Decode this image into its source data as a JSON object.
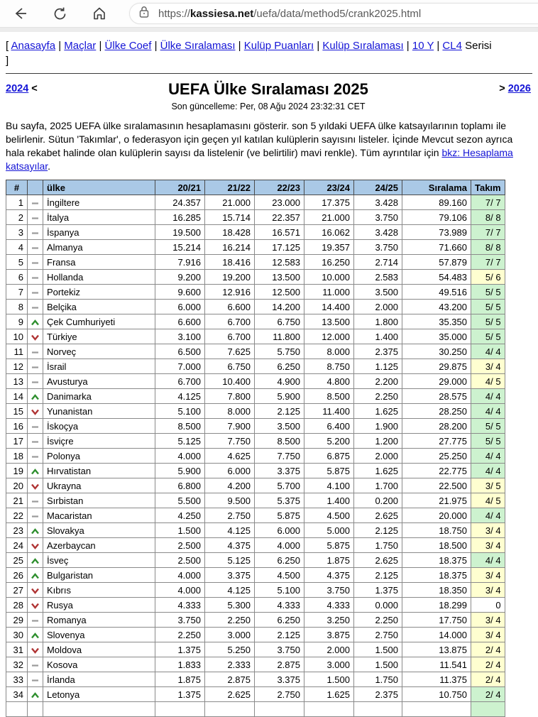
{
  "browser": {
    "url_prefix": "https://",
    "url_domain": "kassiesa.net",
    "url_path": "/uefa/data/method5/crank2025.html"
  },
  "nav": {
    "bracket_open": "[",
    "links": [
      "Anasayfa",
      "Maçlar",
      "Ülke Coef",
      "Ülke Sıralaması",
      "Kulüp Puanları",
      "Kulüp Sıralaması",
      "10 Y",
      "CL4"
    ],
    "separator": "|",
    "suffix": "Serisi",
    "bracket_close": "]"
  },
  "header": {
    "prev_year": "2024",
    "prev_sep": " <",
    "title": "UEFA Ülke Sıralaması 2025",
    "subtitle": "Son güncelleme: Per, 08 Ağu 2024 23:32:31 CET",
    "next_sep": "> ",
    "next_year": "2026"
  },
  "intro": {
    "before_link": "Bu sayfa, 2025 UEFA ülke sıralamasının hesaplamasını gösterir. son 5 yıldaki UEFA ülke katsayılarının toplamı ile belirlenir. Sütun 'Takımlar', o federasyon için geçen yıl katılan kulüplerin sayısını listeler. İçinde Mevcut sezon ayrıca hala rekabet halinde olan kulüplerin sayısı da listelenir (ve belirtilir) mavi renkle). Tüm ayrıntılar için ",
    "link_text": "bkz: Hesaplama katsayılar",
    "after_link": "."
  },
  "table": {
    "headers": [
      "#",
      "",
      "ülke",
      "20/21",
      "21/22",
      "22/23",
      "23/24",
      "24/25",
      "Sıralama",
      "Takım"
    ],
    "rows": [
      {
        "rank": "1",
        "move": "same",
        "country": "İngiltere",
        "values": [
          "24.357",
          "21.000",
          "23.000",
          "17.375",
          "3.428"
        ],
        "total": "89.160",
        "teams": "7/ 7",
        "teams_bg": "green"
      },
      {
        "rank": "2",
        "move": "same",
        "country": "İtalya",
        "values": [
          "16.285",
          "15.714",
          "22.357",
          "21.000",
          "3.750"
        ],
        "total": "79.106",
        "teams": "8/ 8",
        "teams_bg": "green"
      },
      {
        "rank": "3",
        "move": "same",
        "country": "İspanya",
        "values": [
          "19.500",
          "18.428",
          "16.571",
          "16.062",
          "3.428"
        ],
        "total": "73.989",
        "teams": "7/ 7",
        "teams_bg": "green"
      },
      {
        "rank": "4",
        "move": "same",
        "country": "Almanya",
        "values": [
          "15.214",
          "16.214",
          "17.125",
          "19.357",
          "3.750"
        ],
        "total": "71.660",
        "teams": "8/ 8",
        "teams_bg": "green"
      },
      {
        "rank": "5",
        "move": "same",
        "country": "Fransa",
        "values": [
          "7.916",
          "18.416",
          "12.583",
          "16.250",
          "2.714"
        ],
        "total": "57.879",
        "teams": "7/ 7",
        "teams_bg": "green"
      },
      {
        "rank": "6",
        "move": "same",
        "country": "Hollanda",
        "values": [
          "9.200",
          "19.200",
          "13.500",
          "10.000",
          "2.583"
        ],
        "total": "54.483",
        "teams": "5/ 6",
        "teams_bg": "yellow"
      },
      {
        "rank": "7",
        "move": "same",
        "country": "Portekiz",
        "values": [
          "9.600",
          "12.916",
          "12.500",
          "11.000",
          "3.500"
        ],
        "total": "49.516",
        "teams": "5/ 5",
        "teams_bg": "green"
      },
      {
        "rank": "8",
        "move": "same",
        "country": "Belçika",
        "values": [
          "6.000",
          "6.600",
          "14.200",
          "14.400",
          "2.000"
        ],
        "total": "43.200",
        "teams": "5/ 5",
        "teams_bg": "green"
      },
      {
        "rank": "9",
        "move": "up",
        "country": "Çek Cumhuriyeti",
        "values": [
          "6.600",
          "6.700",
          "6.750",
          "13.500",
          "1.800"
        ],
        "total": "35.350",
        "teams": "5/ 5",
        "teams_bg": "green"
      },
      {
        "rank": "10",
        "move": "down",
        "country": "Türkiye",
        "values": [
          "3.100",
          "6.700",
          "11.800",
          "12.000",
          "1.400"
        ],
        "total": "35.000",
        "teams": "5/ 5",
        "teams_bg": "green"
      },
      {
        "rank": "11",
        "move": "same",
        "country": "Norveç",
        "values": [
          "6.500",
          "7.625",
          "5.750",
          "8.000",
          "2.375"
        ],
        "total": "30.250",
        "teams": "4/ 4",
        "teams_bg": "green"
      },
      {
        "rank": "12",
        "move": "same",
        "country": "İsrail",
        "values": [
          "7.000",
          "6.750",
          "6.250",
          "8.750",
          "1.125"
        ],
        "total": "29.875",
        "teams": "3/ 4",
        "teams_bg": "yellow"
      },
      {
        "rank": "13",
        "move": "same",
        "country": "Avusturya",
        "values": [
          "6.700",
          "10.400",
          "4.900",
          "4.800",
          "2.200"
        ],
        "total": "29.000",
        "teams": "4/ 5",
        "teams_bg": "yellow"
      },
      {
        "rank": "14",
        "move": "up",
        "country": "Danimarka",
        "values": [
          "4.125",
          "7.800",
          "5.900",
          "8.500",
          "2.250"
        ],
        "total": "28.575",
        "teams": "4/ 4",
        "teams_bg": "green"
      },
      {
        "rank": "15",
        "move": "down",
        "country": "Yunanistan",
        "values": [
          "5.100",
          "8.000",
          "2.125",
          "11.400",
          "1.625"
        ],
        "total": "28.250",
        "teams": "4/ 4",
        "teams_bg": "green"
      },
      {
        "rank": "16",
        "move": "same",
        "country": "İskoçya",
        "values": [
          "8.500",
          "7.900",
          "3.500",
          "6.400",
          "1.900"
        ],
        "total": "28.200",
        "teams": "5/ 5",
        "teams_bg": "green"
      },
      {
        "rank": "17",
        "move": "same",
        "country": "İsviçre",
        "values": [
          "5.125",
          "7.750",
          "8.500",
          "5.200",
          "1.200"
        ],
        "total": "27.775",
        "teams": "5/ 5",
        "teams_bg": "green"
      },
      {
        "rank": "18",
        "move": "same",
        "country": "Polonya",
        "values": [
          "4.000",
          "4.625",
          "7.750",
          "6.875",
          "2.000"
        ],
        "total": "25.250",
        "teams": "4/ 4",
        "teams_bg": "green"
      },
      {
        "rank": "19",
        "move": "up",
        "country": "Hırvatistan",
        "values": [
          "5.900",
          "6.000",
          "3.375",
          "5.875",
          "1.625"
        ],
        "total": "22.775",
        "teams": "4/ 4",
        "teams_bg": "green"
      },
      {
        "rank": "20",
        "move": "down",
        "country": "Ukrayna",
        "values": [
          "6.800",
          "4.200",
          "5.700",
          "4.100",
          "1.700"
        ],
        "total": "22.500",
        "teams": "3/ 5",
        "teams_bg": "yellow"
      },
      {
        "rank": "21",
        "move": "same",
        "country": "Sırbistan",
        "values": [
          "5.500",
          "9.500",
          "5.375",
          "1.400",
          "0.200"
        ],
        "total": "21.975",
        "teams": "4/ 5",
        "teams_bg": "yellow"
      },
      {
        "rank": "22",
        "move": "same",
        "country": "Macaristan",
        "values": [
          "4.250",
          "2.750",
          "5.875",
          "4.500",
          "2.625"
        ],
        "total": "20.000",
        "teams": "4/ 4",
        "teams_bg": "green"
      },
      {
        "rank": "23",
        "move": "up",
        "country": "Slovakya",
        "values": [
          "1.500",
          "4.125",
          "6.000",
          "5.000",
          "2.125"
        ],
        "total": "18.750",
        "teams": "3/ 4",
        "teams_bg": "yellow"
      },
      {
        "rank": "24",
        "move": "down",
        "country": "Azerbaycan",
        "values": [
          "2.500",
          "4.375",
          "4.000",
          "5.875",
          "1.750"
        ],
        "total": "18.500",
        "teams": "3/ 4",
        "teams_bg": "yellow"
      },
      {
        "rank": "25",
        "move": "up",
        "country": "İsveç",
        "values": [
          "2.500",
          "5.125",
          "6.250",
          "1.875",
          "2.625"
        ],
        "total": "18.375",
        "teams": "4/ 4",
        "teams_bg": "green"
      },
      {
        "rank": "26",
        "move": "up",
        "country": "Bulgaristan",
        "values": [
          "4.000",
          "3.375",
          "4.500",
          "4.375",
          "2.125"
        ],
        "total": "18.375",
        "teams": "3/ 4",
        "teams_bg": "yellow"
      },
      {
        "rank": "27",
        "move": "down",
        "country": "Kıbrıs",
        "values": [
          "4.000",
          "4.125",
          "5.100",
          "3.750",
          "1.375"
        ],
        "total": "18.350",
        "teams": "3/ 4",
        "teams_bg": "yellow"
      },
      {
        "rank": "28",
        "move": "down",
        "country": "Rusya",
        "values": [
          "4.333",
          "5.300",
          "4.333",
          "4.333",
          "0.000"
        ],
        "total": "18.299",
        "teams": "0",
        "teams_bg": "white"
      },
      {
        "rank": "29",
        "move": "same",
        "country": "Romanya",
        "values": [
          "3.750",
          "2.250",
          "6.250",
          "3.250",
          "2.250"
        ],
        "total": "17.750",
        "teams": "3/ 4",
        "teams_bg": "yellow"
      },
      {
        "rank": "30",
        "move": "up",
        "country": "Slovenya",
        "values": [
          "2.250",
          "3.000",
          "2.125",
          "3.875",
          "2.750"
        ],
        "total": "14.000",
        "teams": "3/ 4",
        "teams_bg": "yellow"
      },
      {
        "rank": "31",
        "move": "down",
        "country": "Moldova",
        "values": [
          "1.375",
          "5.250",
          "3.750",
          "2.000",
          "1.500"
        ],
        "total": "13.875",
        "teams": "2/ 4",
        "teams_bg": "yellow"
      },
      {
        "rank": "32",
        "move": "same",
        "country": "Kosova",
        "values": [
          "1.833",
          "2.333",
          "2.875",
          "3.000",
          "1.500"
        ],
        "total": "11.541",
        "teams": "2/ 4",
        "teams_bg": "yellow"
      },
      {
        "rank": "33",
        "move": "same",
        "country": "İrlanda",
        "values": [
          "1.875",
          "2.875",
          "3.375",
          "1.500",
          "1.750"
        ],
        "total": "11.375",
        "teams": "2/ 4",
        "teams_bg": "yellow"
      },
      {
        "rank": "34",
        "move": "up",
        "country": "Letonya",
        "values": [
          "1.375",
          "2.625",
          "2.750",
          "1.625",
          "2.375"
        ],
        "total": "10.750",
        "teams": "2/ 4",
        "teams_bg": "green"
      }
    ]
  },
  "colors": {
    "link": "#1414d6",
    "table_header_bg": "#aac9e6",
    "teams_green": "#cdf2cf",
    "teams_yellow": "#ffffd0",
    "move_up": "#2f8f2f",
    "move_down": "#b03434",
    "move_same": "#9a9a9a"
  }
}
